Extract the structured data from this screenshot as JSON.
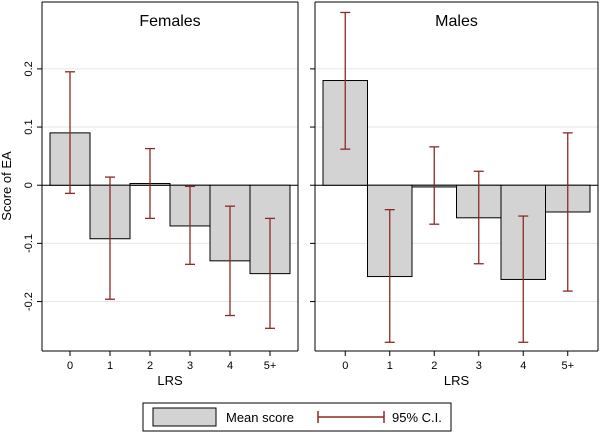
{
  "chart_data": {
    "type": "bar",
    "ylabel": "Score of EA",
    "xlabel": "LRS",
    "categories": [
      "0",
      "1",
      "2",
      "3",
      "4",
      "5+"
    ],
    "ylim": [
      -0.285,
      0.315
    ],
    "yticks": [
      -0.2,
      -0.1,
      0,
      0.1,
      0.2
    ],
    "ytick_labels": [
      "-0.2",
      "-0.1",
      "0",
      "0.1",
      "0.2"
    ],
    "grid": true,
    "legend_position": "bottom",
    "panels": [
      {
        "title": "Females",
        "values": [
          0.09,
          -0.092,
          0.003,
          -0.07,
          -0.13,
          -0.152
        ],
        "ci_low": [
          -0.014,
          -0.196,
          -0.057,
          -0.136,
          -0.224,
          -0.246
        ],
        "ci_high": [
          0.195,
          0.014,
          0.063,
          -0.002,
          -0.036,
          -0.057
        ]
      },
      {
        "title": "Males",
        "values": [
          0.18,
          -0.157,
          -0.003,
          -0.056,
          -0.162,
          -0.046
        ],
        "ci_low": [
          0.062,
          -0.27,
          -0.067,
          -0.135,
          -0.27,
          -0.182
        ],
        "ci_high": [
          0.297,
          -0.042,
          0.066,
          0.024,
          -0.053,
          0.09
        ]
      }
    ],
    "legend": {
      "bar_label": "Mean score",
      "ci_label": "95% C.I."
    },
    "colors": {
      "bar_fill": "#d3d3d3",
      "bar_stroke": "#000000",
      "ci": "#8b2a24",
      "grid": "#e6e6e6"
    }
  }
}
